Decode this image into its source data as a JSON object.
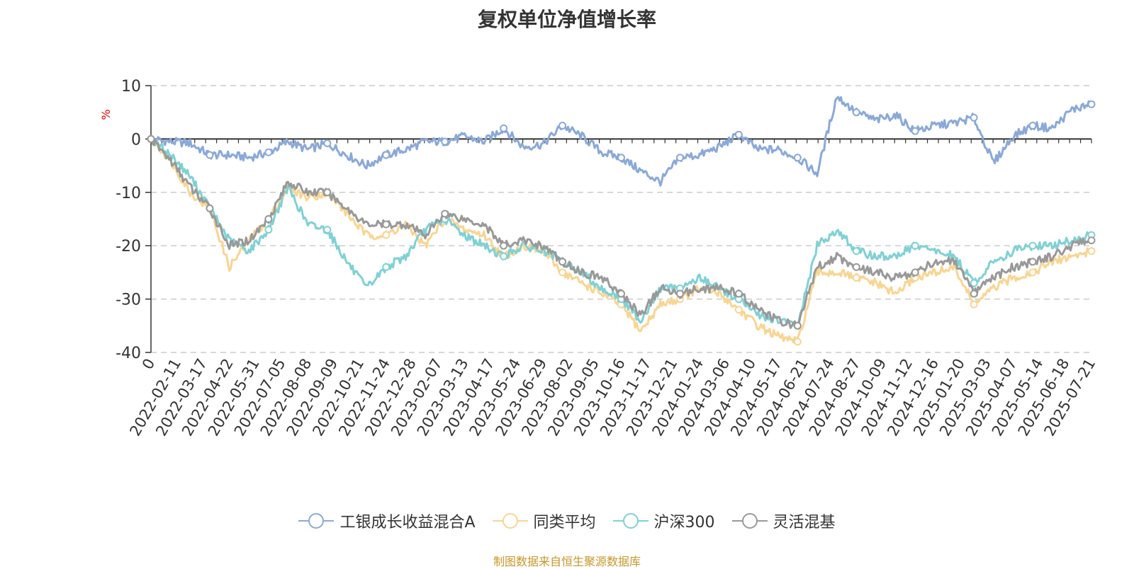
{
  "chart_data": {
    "type": "line",
    "title": "复权单位净值增长率",
    "ylabel": "%",
    "ylim": [
      -40,
      10
    ],
    "yticks": [
      10,
      0,
      -10,
      -20,
      -30,
      -40
    ],
    "grid": true,
    "legend_position": "bottom",
    "x_tick_labels": [
      "0",
      "2022-02-11",
      "2022-03-17",
      "2022-04-22",
      "2022-05-31",
      "2022-07-05",
      "2022-08-08",
      "2022-09-09",
      "2022-10-21",
      "2022-11-24",
      "2022-12-28",
      "2023-02-07",
      "2023-03-13",
      "2023-04-17",
      "2023-05-24",
      "2023-06-29",
      "2023-08-02",
      "2023-09-05",
      "2023-10-16",
      "2023-11-17",
      "2023-12-21",
      "2024-01-24",
      "2024-03-06",
      "2024-04-10",
      "2024-05-17",
      "2024-06-21",
      "2024-07-24",
      "2024-08-27",
      "2024-10-09",
      "2024-11-12",
      "2024-12-16",
      "2025-01-20",
      "2025-03-03",
      "2025-04-07",
      "2025-05-14",
      "2025-06-18",
      "2025-07-21"
    ],
    "series": [
      {
        "name": "工银成长收益混合A",
        "color": "#8aa9d9",
        "values": [
          0,
          -0.5,
          -0.8,
          -3.0,
          -3.0,
          -3.5,
          -2.5,
          -0.5,
          -2.0,
          -0.8,
          -3.0,
          -5.0,
          -3.0,
          -2.0,
          -0.5,
          -0.5,
          0.5,
          -0.5,
          2.0,
          -1.5,
          -1.0,
          2.5,
          0.5,
          -2.5,
          -3.5,
          -6.0,
          -8.0,
          -3.5,
          -3.0,
          -1.5,
          0.8,
          -2.0,
          -2.0,
          -3.5,
          -6.5,
          8.0,
          5.0,
          3.5,
          4.5,
          1.5,
          2.5,
          3.0,
          4.0,
          -4.5,
          0.5,
          2.5,
          2.0,
          5.5,
          6.5
        ]
      },
      {
        "name": "同类平均",
        "color": "#f9d592",
        "values": [
          0,
          -4,
          -10,
          -13,
          -24,
          -19,
          -15,
          -9,
          -11,
          -10,
          -14,
          -18,
          -18,
          -16,
          -20,
          -15,
          -17,
          -18,
          -22,
          -20,
          -21,
          -25,
          -27,
          -29,
          -31,
          -36,
          -31,
          -30,
          -28,
          -29,
          -32,
          -35,
          -37,
          -38,
          -25,
          -25,
          -26,
          -27,
          -29,
          -26,
          -25,
          -24,
          -31,
          -28,
          -26,
          -25,
          -23,
          -22,
          -21
        ]
      },
      {
        "name": "沪深300",
        "color": "#7fd1d4",
        "values": [
          0,
          -3,
          -7,
          -13,
          -19,
          -21,
          -17,
          -9,
          -16,
          -17,
          -23,
          -28,
          -24,
          -22,
          -17,
          -15,
          -18,
          -20,
          -22,
          -20,
          -21,
          -23,
          -25,
          -28,
          -30,
          -34,
          -28,
          -28,
          -26,
          -28,
          -30,
          -33,
          -34,
          -35,
          -20,
          -17,
          -21,
          -22,
          -22,
          -20,
          -21,
          -22,
          -27,
          -23,
          -21,
          -20,
          -20,
          -19,
          -18
        ]
      },
      {
        "name": "灵活混基",
        "color": "#999999",
        "values": [
          0,
          -4,
          -9,
          -13,
          -20,
          -19,
          -15,
          -8,
          -10,
          -10,
          -13,
          -16,
          -16,
          -16,
          -18,
          -14,
          -15,
          -16,
          -20,
          -19,
          -20,
          -23,
          -25,
          -26,
          -29,
          -33,
          -28,
          -29,
          -28,
          -28,
          -29,
          -32,
          -34,
          -35,
          -24,
          -22,
          -24,
          -25,
          -26,
          -25,
          -23,
          -23,
          -29,
          -26,
          -24,
          -23,
          -22,
          -20,
          -19
        ]
      }
    ]
  },
  "source_note": "制图数据来自恒生聚源数据库"
}
